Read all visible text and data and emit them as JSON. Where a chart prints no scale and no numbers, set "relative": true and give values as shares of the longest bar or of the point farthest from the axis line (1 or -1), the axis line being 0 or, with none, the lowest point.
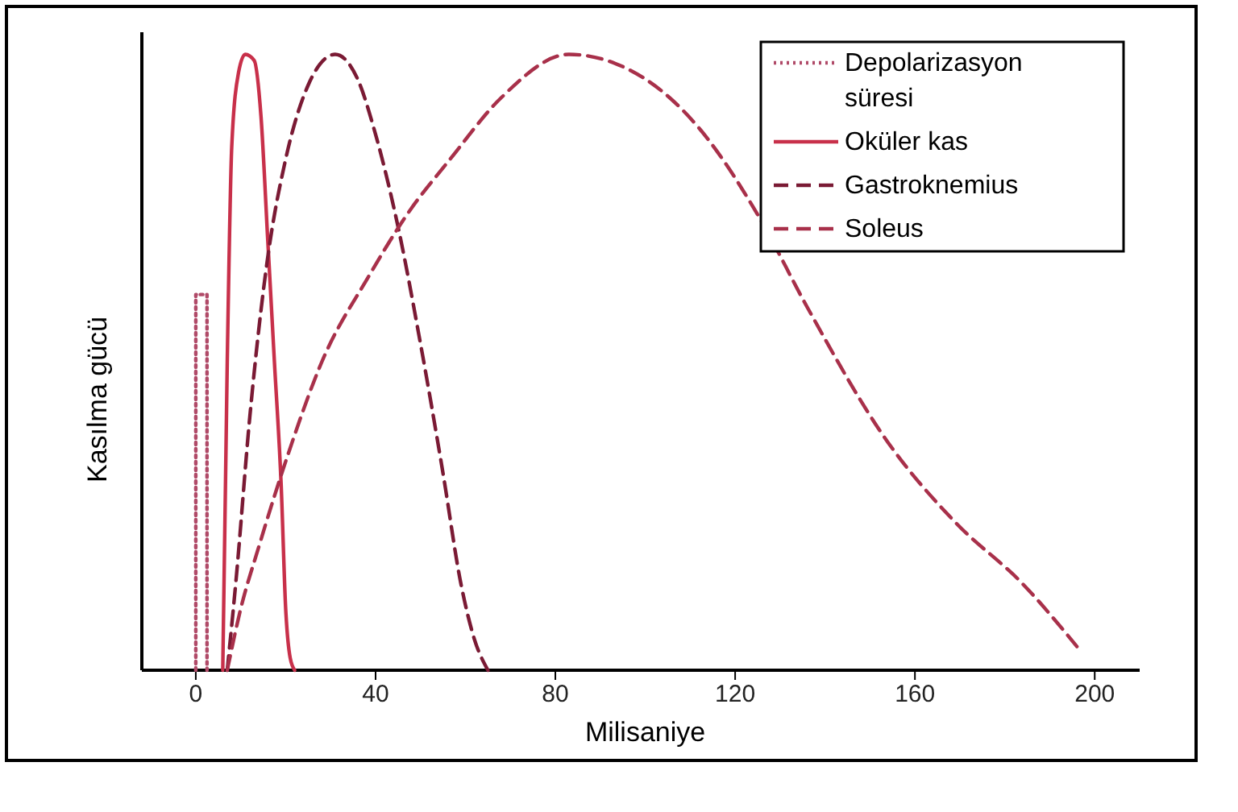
{
  "chart_data": {
    "type": "line",
    "xlabel": "Milisaniye",
    "ylabel": "Kasılma gücü",
    "relative": true,
    "xlim": [
      -12,
      210
    ],
    "xticks": [
      0,
      40,
      80,
      120,
      160,
      200
    ],
    "legend": "top right",
    "series": [
      {
        "name": "Depolarizasyon süresi",
        "color": "#b04a68",
        "line_style": "dotted",
        "x": [
          0,
          0,
          2.5,
          2.5
        ],
        "values": [
          0,
          0.61,
          0.61,
          0
        ]
      },
      {
        "name": "Oküler kas",
        "color": "#c8304a",
        "line_style": "solid",
        "x": [
          6,
          7,
          8,
          9.5,
          11,
          13,
          14.5,
          16,
          17.5,
          19,
          20,
          21,
          22
        ],
        "values": [
          0,
          0.5,
          0.85,
          0.97,
          1,
          0.99,
          0.9,
          0.7,
          0.5,
          0.3,
          0.1,
          0.02,
          0
        ]
      },
      {
        "name": "Gastroknemius",
        "color": "#7a1a34",
        "line_style": "dashed",
        "x": [
          7,
          9,
          12,
          16,
          20,
          25,
          31,
          36,
          40,
          45,
          50,
          55,
          59,
          62,
          65
        ],
        "values": [
          0,
          0.15,
          0.41,
          0.67,
          0.83,
          0.95,
          1,
          0.96,
          0.87,
          0.72,
          0.53,
          0.32,
          0.14,
          0.05,
          0
        ]
      },
      {
        "name": "Soleus",
        "color": "#a8304a",
        "line_style": "dashed",
        "x": [
          7,
          10,
          14,
          20.5,
          28,
          38.5,
          47,
          56.6,
          68,
          83,
          100,
          112,
          125,
          136,
          154,
          169,
          184,
          197
        ],
        "values": [
          0,
          0.1,
          0.2,
          0.35,
          0.5,
          0.64,
          0.74,
          0.83,
          0.93,
          1,
          0.96,
          0.88,
          0.74,
          0.59,
          0.37,
          0.24,
          0.14,
          0.03
        ]
      }
    ]
  }
}
